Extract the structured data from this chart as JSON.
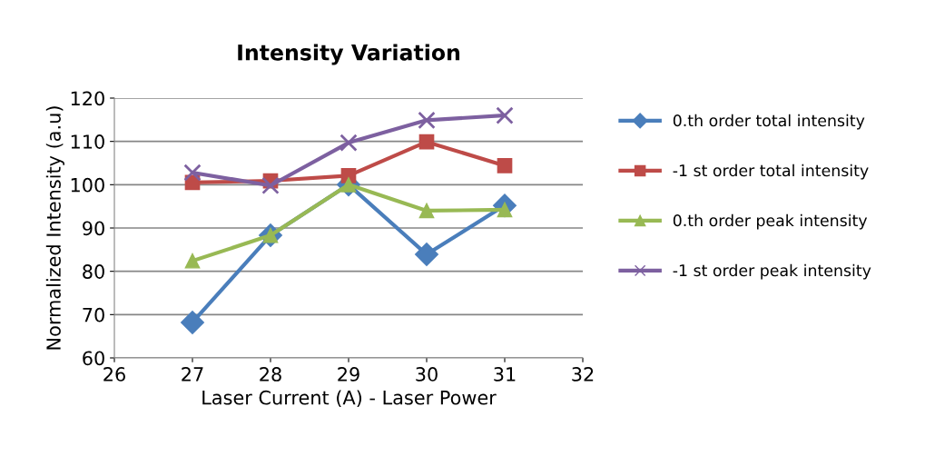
{
  "chart_data": {
    "type": "line",
    "title": "Intensity Variation",
    "xlabel": "Laser Current (A) - Laser Power",
    "ylabel": "Normalized Intensity (a.u)",
    "x": [
      27,
      28,
      29,
      30,
      31
    ],
    "series": [
      {
        "name": "0.th order total intensity",
        "color": "#4a7ebb",
        "marker": "diamond",
        "values": [
          68.2,
          88.3,
          100,
          83.9,
          95.2
        ]
      },
      {
        "name": "-1 st order total intensity",
        "color": "#be4b48",
        "marker": "square",
        "values": [
          100.5,
          100.9,
          102.1,
          109.9,
          104.4
        ]
      },
      {
        "name": "0.th order peak intensity",
        "color": "#98b954",
        "marker": "triangle",
        "values": [
          82.4,
          88.3,
          100,
          94,
          94.2
        ]
      },
      {
        "name": "-1 st order peak intensity",
        "color": "#7d60a0",
        "marker": "cross",
        "values": [
          102.8,
          99.8,
          109.7,
          114.9,
          116
        ]
      }
    ],
    "xlim": [
      26,
      32
    ],
    "xticks": [
      26,
      27,
      28,
      29,
      30,
      31,
      32
    ],
    "ylim": [
      60,
      120
    ],
    "yticks": [
      60,
      70,
      80,
      90,
      100,
      110,
      120
    ],
    "grid": "y",
    "legend": "right"
  }
}
